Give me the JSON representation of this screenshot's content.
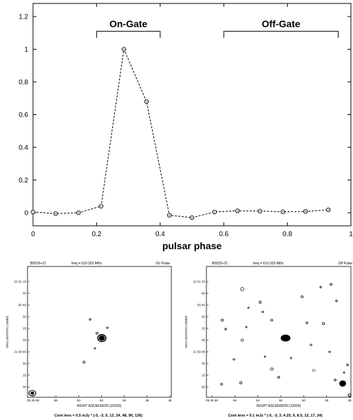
{
  "chart_data": [
    {
      "type": "line",
      "xlabel": "pulsar phase",
      "ylabel": "",
      "xlim": [
        0,
        1
      ],
      "ylim": [
        -0.08,
        1.28
      ],
      "x_ticks": [
        "0",
        "0.2",
        "0.4",
        "0.6",
        "0.8",
        "1"
      ],
      "y_ticks": [
        "0",
        "0.2",
        "0.4",
        "0.6",
        "0.8",
        "1",
        "1.2"
      ],
      "x": [
        0.0,
        0.071,
        0.143,
        0.214,
        0.286,
        0.357,
        0.429,
        0.5,
        0.571,
        0.643,
        0.714,
        0.786,
        0.857,
        0.929
      ],
      "values": [
        0.005,
        -0.005,
        0.0,
        0.04,
        1.0,
        0.68,
        -0.015,
        -0.03,
        0.005,
        0.012,
        0.01,
        0.006,
        0.008,
        0.018
      ],
      "style": "dashed line with open circle markers",
      "annotations": [
        {
          "text": "On-Gate",
          "x_range": [
            0.2,
            0.4
          ]
        },
        {
          "text": "Off-Gate",
          "x_range": [
            0.6,
            0.96
          ]
        }
      ],
      "grid": false
    },
    {
      "type": "contour",
      "source": "B0525+21",
      "freq": "freq = 610.333 MHz",
      "label": "On Pulse",
      "xlabel": "RIGHT ASCENSION (J2000)",
      "ylabel": "DECLINATION (J2000)",
      "x_ticks": [
        "05 28 58",
        "56",
        "54",
        "52",
        "50",
        "48",
        "46"
      ],
      "y_ticks": [
        "22 01 15",
        "00",
        "00 45",
        "30",
        "15",
        "00",
        "21 59 45",
        "30",
        "15",
        "00"
      ],
      "caption": "Cont levs = 0.5 mJy * (-5, -3, 5, 12, 24, 48, 96, 136)"
    },
    {
      "type": "contour",
      "source": "B0525+21",
      "freq": "freq = 610.333 MHz",
      "label": "Off Pulse",
      "xlabel": "RIGHT ASCENSION (J2000)",
      "ylabel": "DECLINATION (J2000)",
      "x_ticks": [
        "05 28 58",
        "56",
        "54",
        "52",
        "50",
        "48",
        "46"
      ],
      "y_ticks": [
        "22 01 15",
        "00",
        "00 45",
        "30",
        "15",
        "00",
        "21 59 45",
        "30",
        "15",
        "00"
      ],
      "caption": "Cont levs = 0.1 mJy * (-5, -3, 3, 4.25, 6, 8.5, 12, 17, 24)"
    }
  ]
}
